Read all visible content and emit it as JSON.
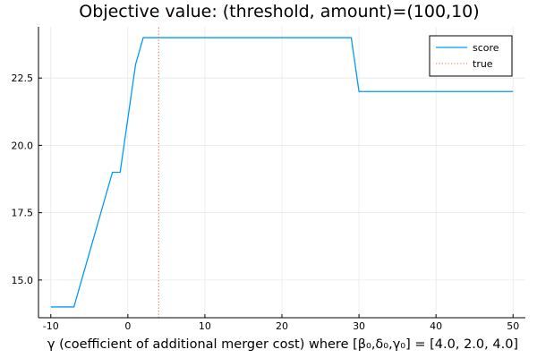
{
  "chart_data": {
    "type": "line",
    "title": "Objective value: (threshold, amount)=(100,10)",
    "xlabel": "γ (coefficient of additional merger cost) where [β₀,δ₀,γ₀] = [4.0, 2.0, 4.0]",
    "ylabel": "",
    "xlim": [
      -11.6,
      51.6
    ],
    "ylim": [
      13.6,
      24.4
    ],
    "xticks": [
      -10,
      0,
      10,
      20,
      30,
      40,
      50
    ],
    "yticks": [
      15.0,
      17.5,
      20.0,
      22.5
    ],
    "ytick_labels": [
      "15.0",
      "17.5",
      "20.0",
      "22.5"
    ],
    "grid": true,
    "legend_position": "top-right",
    "series": [
      {
        "name": "score",
        "color": "#009af9",
        "style": "solid",
        "x": [
          -10,
          -7,
          -2,
          -1,
          0,
          1,
          2,
          29,
          30,
          50
        ],
        "y": [
          14,
          14,
          19,
          19,
          21,
          23,
          24,
          24,
          22,
          22
        ]
      },
      {
        "name": "true",
        "color": "#e26f46",
        "style": "dotted",
        "x": [
          4,
          4
        ],
        "y": [
          13.6,
          24.4
        ]
      }
    ]
  }
}
